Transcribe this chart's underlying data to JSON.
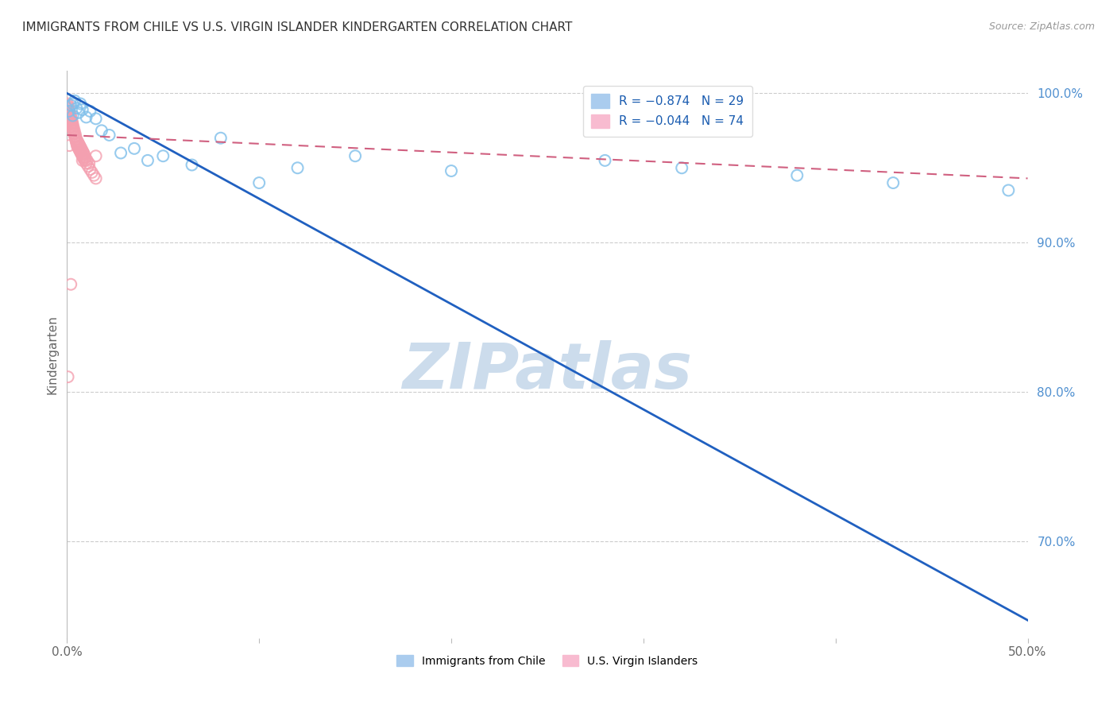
{
  "title": "IMMIGRANTS FROM CHILE VS U.S. VIRGIN ISLANDER KINDERGARTEN CORRELATION CHART",
  "source": "Source: ZipAtlas.com",
  "ylabel": "Kindergarten",
  "x_min": 0.0,
  "x_max": 0.5,
  "y_min": 0.635,
  "y_max": 1.015,
  "y_ticks_right": [
    0.7,
    0.8,
    0.9,
    1.0
  ],
  "y_tick_labels_right": [
    "70.0%",
    "80.0%",
    "90.0%",
    "100.0%"
  ],
  "x_tick_positions": [
    0.0,
    0.1,
    0.2,
    0.3,
    0.4,
    0.5
  ],
  "x_tick_labels": [
    "0.0%",
    "",
    "",
    "",
    "",
    "50.0%"
  ],
  "legend_entry1": "R = −0.874   N = 29",
  "legend_entry2": "R = −0.044   N = 74",
  "legend_xlabel1": "Immigrants from Chile",
  "legend_xlabel2": "U.S. Virgin Islanders",
  "blue_color": "#7fbfea",
  "pink_color": "#f4a0b0",
  "blue_line_color": "#2060c0",
  "pink_line_color": "#d06080",
  "blue_line_x": [
    0.0,
    0.5
  ],
  "blue_line_y": [
    1.0,
    0.647
  ],
  "pink_line_x": [
    0.0,
    0.5
  ],
  "pink_line_y": [
    0.972,
    0.943
  ],
  "blue_scatter_x": [
    0.001,
    0.002,
    0.003,
    0.004,
    0.005,
    0.006,
    0.007,
    0.008,
    0.01,
    0.012,
    0.015,
    0.018,
    0.022,
    0.028,
    0.035,
    0.042,
    0.05,
    0.065,
    0.08,
    0.1,
    0.12,
    0.15,
    0.2,
    0.28,
    0.32,
    0.38,
    0.43,
    0.49,
    0.003
  ],
  "blue_scatter_y": [
    0.988,
    0.992,
    0.985,
    0.995,
    0.99,
    0.987,
    0.993,
    0.989,
    0.984,
    0.988,
    0.983,
    0.975,
    0.972,
    0.96,
    0.963,
    0.955,
    0.958,
    0.952,
    0.97,
    0.94,
    0.95,
    0.958,
    0.948,
    0.955,
    0.95,
    0.945,
    0.94,
    0.935,
    0.993
  ],
  "pink_scatter_x": [
    0.0002,
    0.0003,
    0.0004,
    0.0005,
    0.0006,
    0.0007,
    0.0008,
    0.0009,
    0.001,
    0.0011,
    0.0012,
    0.0013,
    0.0014,
    0.0015,
    0.0016,
    0.0017,
    0.0018,
    0.0019,
    0.002,
    0.0021,
    0.0022,
    0.0023,
    0.0024,
    0.0025,
    0.0026,
    0.0027,
    0.0028,
    0.0029,
    0.003,
    0.0032,
    0.0034,
    0.0036,
    0.0038,
    0.004,
    0.0042,
    0.0044,
    0.0046,
    0.0048,
    0.005,
    0.0052,
    0.0054,
    0.0056,
    0.0058,
    0.006,
    0.0062,
    0.0064,
    0.0066,
    0.0068,
    0.007,
    0.0072,
    0.0074,
    0.0076,
    0.0078,
    0.008,
    0.0082,
    0.0084,
    0.0086,
    0.0088,
    0.009,
    0.0093,
    0.0096,
    0.01,
    0.0105,
    0.011,
    0.0115,
    0.012,
    0.013,
    0.014,
    0.015,
    0.002,
    0.0005,
    0.015,
    0.0012,
    0.008
  ],
  "pink_scatter_y": [
    0.992,
    0.99,
    0.993,
    0.988,
    0.991,
    0.987,
    0.99,
    0.986,
    0.989,
    0.985,
    0.988,
    0.984,
    0.987,
    0.983,
    0.986,
    0.982,
    0.985,
    0.981,
    0.984,
    0.98,
    0.983,
    0.979,
    0.982,
    0.978,
    0.981,
    0.977,
    0.98,
    0.976,
    0.979,
    0.975,
    0.977,
    0.973,
    0.975,
    0.971,
    0.973,
    0.969,
    0.971,
    0.967,
    0.969,
    0.965,
    0.968,
    0.964,
    0.967,
    0.963,
    0.966,
    0.962,
    0.965,
    0.961,
    0.964,
    0.96,
    0.963,
    0.959,
    0.962,
    0.958,
    0.961,
    0.957,
    0.96,
    0.956,
    0.959,
    0.955,
    0.957,
    0.953,
    0.955,
    0.951,
    0.953,
    0.949,
    0.947,
    0.945,
    0.943,
    0.872,
    0.81,
    0.958,
    0.965,
    0.955
  ],
  "watermark_text": "ZIPatlas",
  "watermark_color": "#ccdcec",
  "background_color": "#ffffff",
  "grid_color": "#cccccc"
}
